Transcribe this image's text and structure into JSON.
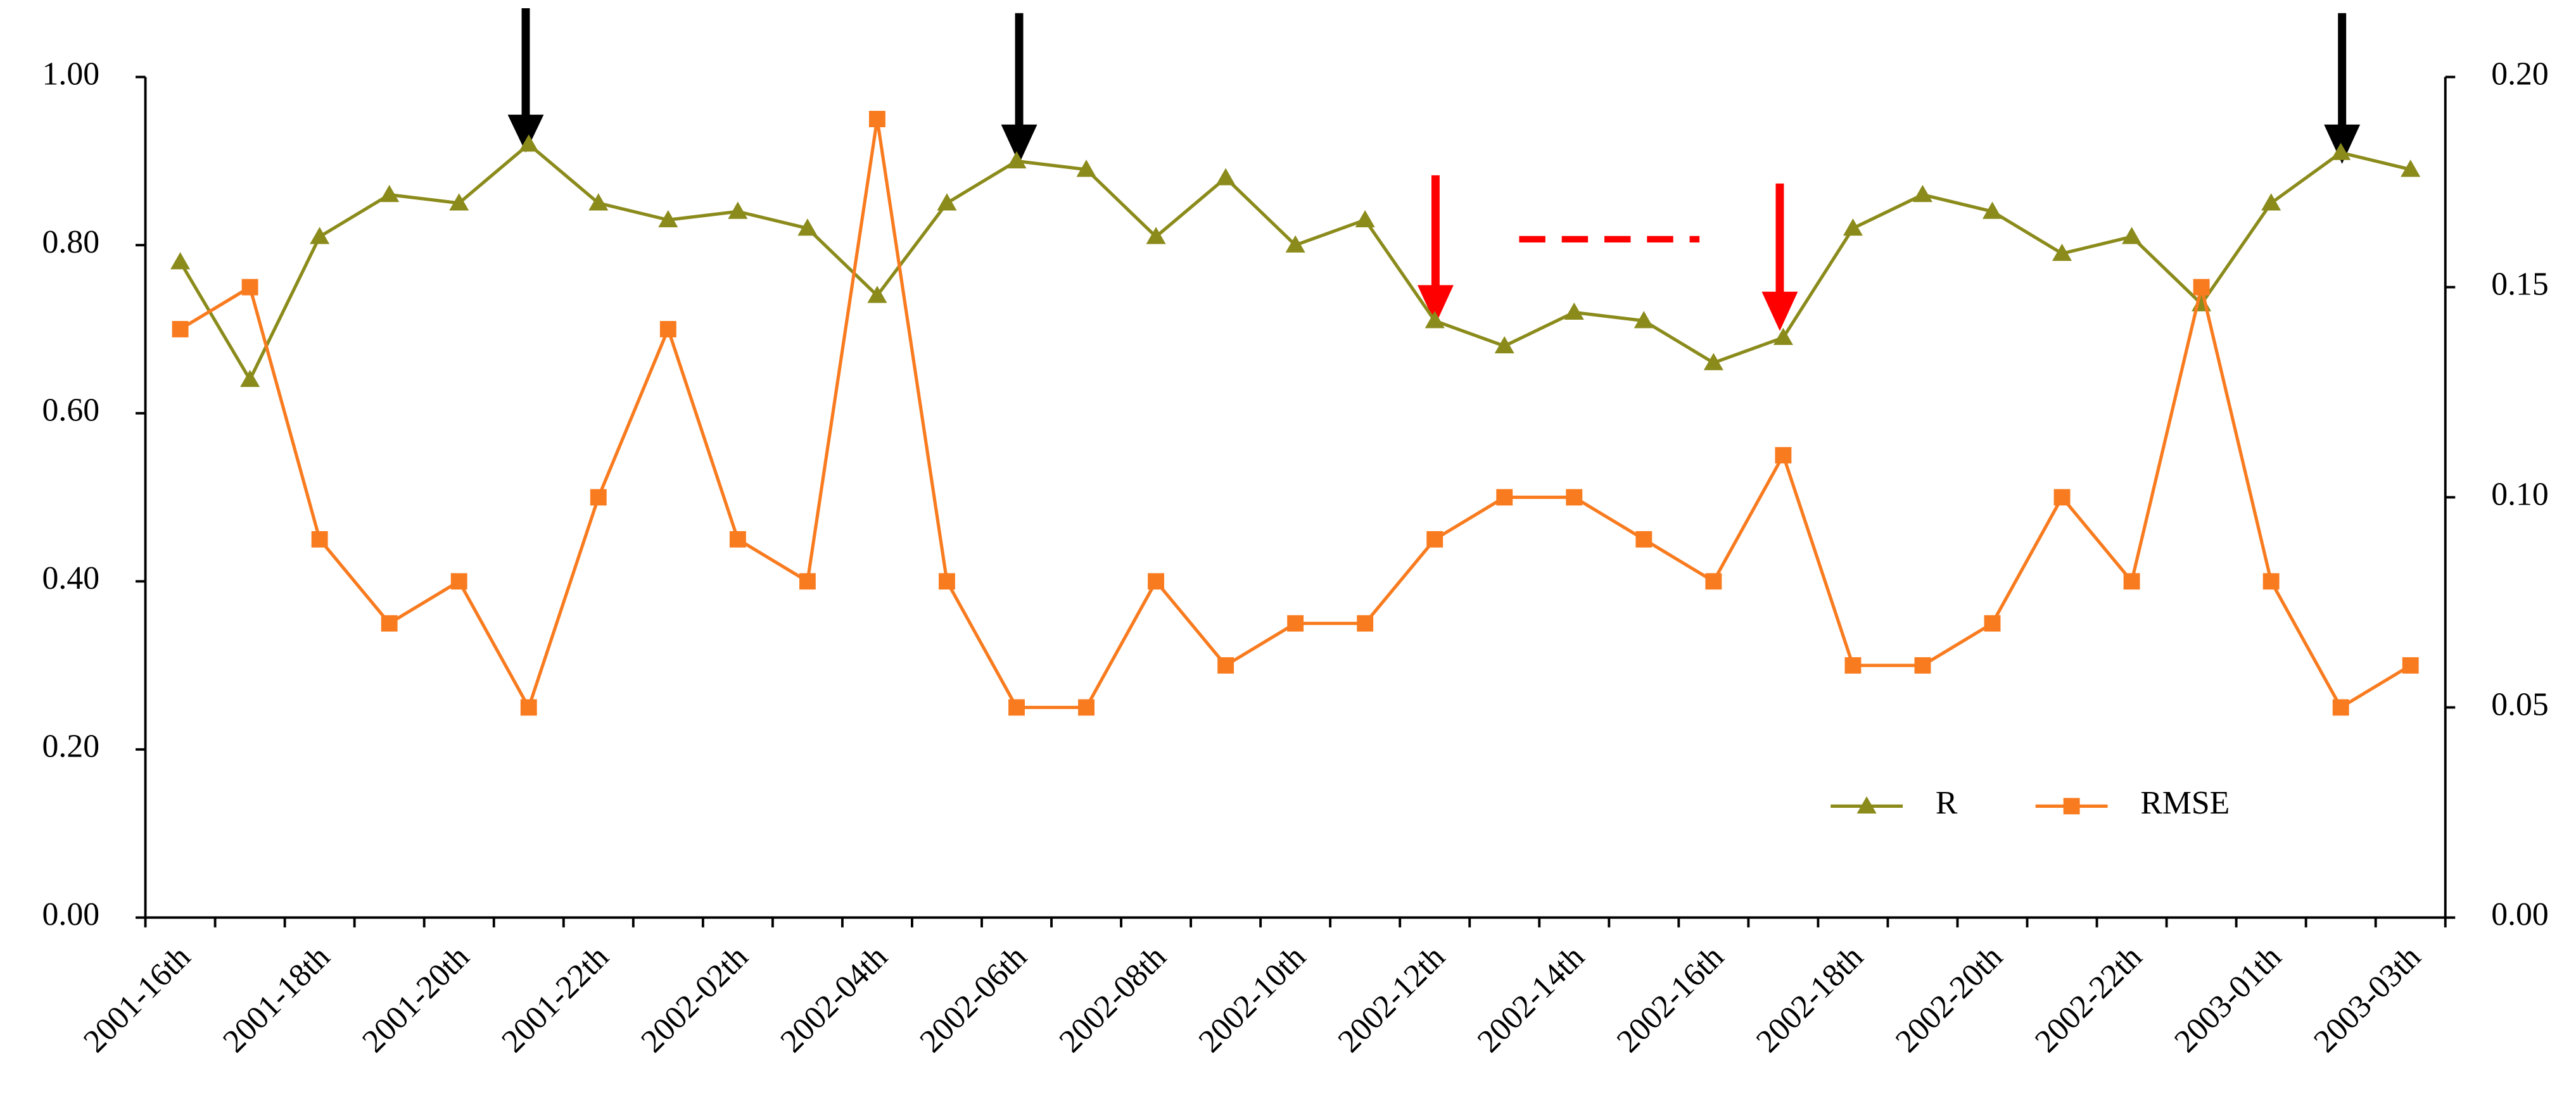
{
  "chart_data": {
    "type": "line",
    "categories": [
      "2001-16th",
      null,
      "2001-18th",
      null,
      "2001-20th",
      null,
      "2001-22th",
      null,
      "2002-02th",
      null,
      "2002-04th",
      null,
      "2002-06th",
      null,
      "2002-08th",
      null,
      "2002-10th",
      null,
      "2002-12th",
      null,
      "2002-14th",
      null,
      "2002-16th",
      null,
      "2002-18th",
      null,
      "2002-20th",
      null,
      "2002-22th",
      null,
      "2003-01th",
      null,
      "2003-03th"
    ],
    "series": [
      {
        "name": "R",
        "color": "#8b8b1c",
        "marker": "triangle",
        "values": [
          0.78,
          0.64,
          0.81,
          0.86,
          0.85,
          0.92,
          0.85,
          0.83,
          0.84,
          0.82,
          0.74,
          0.85,
          0.9,
          0.89,
          0.81,
          0.88,
          0.8,
          0.83,
          0.71,
          0.68,
          0.72,
          0.71,
          0.66,
          0.69,
          0.82,
          0.86,
          0.84,
          0.79,
          0.81,
          0.73,
          0.85,
          0.91,
          0.89
        ]
      },
      {
        "name": "RMSE",
        "color": "#f97b1f",
        "marker": "square",
        "axis": "y2",
        "values": [
          0.14,
          0.15,
          0.09,
          0.07,
          0.08,
          0.05,
          0.1,
          0.14,
          0.09,
          0.08,
          0.19,
          0.08,
          0.05,
          0.05,
          0.08,
          0.06,
          0.07,
          0.07,
          0.09,
          0.1,
          0.1,
          0.09,
          0.08,
          0.11,
          0.06,
          0.06,
          0.07,
          0.1,
          0.08,
          0.15,
          0.08,
          0.05,
          0.06
        ]
      }
    ],
    "ylim": [
      0,
      1
    ],
    "yticks": [
      {
        "value": 0,
        "label": "0.00"
      },
      {
        "value": 0.2,
        "label": "0.20"
      },
      {
        "value": 0.4,
        "label": "0.40"
      },
      {
        "value": 0.6,
        "label": "0.60"
      },
      {
        "value": 0.8,
        "label": "0.80"
      },
      {
        "value": 1,
        "label": "1.00"
      }
    ],
    "y2lim": [
      0,
      0.2
    ],
    "y2ticks": [
      {
        "value": 0,
        "label": "0.00"
      },
      {
        "value": 0.05,
        "label": "0.05"
      },
      {
        "value": 0.1,
        "label": "0.10"
      },
      {
        "value": 0.15,
        "label": "0.15"
      },
      {
        "value": 0.2,
        "label": "0.20"
      }
    ],
    "legend": "lower right",
    "grid": false
  }
}
